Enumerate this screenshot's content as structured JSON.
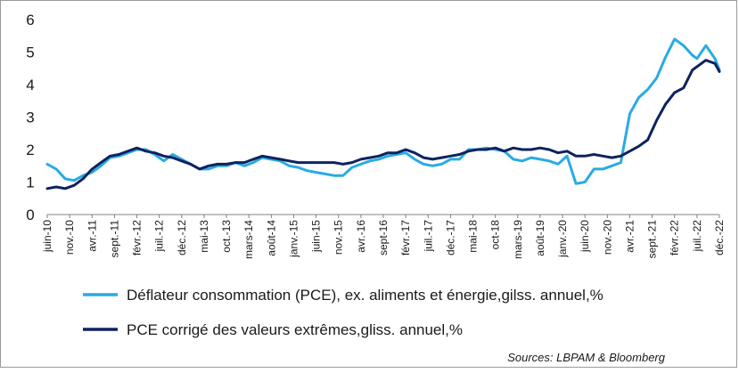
{
  "colors": {
    "pce_headline": "#29abe2",
    "pce_trimmed": "#0d2360",
    "axis": "#808080",
    "text": "#1a1a1a"
  },
  "source_text": "Sources: LBPAM & Bloomberg",
  "chart_data": {
    "type": "line",
    "title": "",
    "xlabel": "",
    "ylabel": "",
    "ylim": [
      0,
      6
    ],
    "yticks": [
      0,
      1,
      2,
      3,
      4,
      5,
      6
    ],
    "grid": false,
    "legend_position": "bottom-left",
    "x_range": [
      "2010-06",
      "2022-12"
    ],
    "x_tick_labels": [
      "juin-10",
      "nov.-10",
      "avr.-11",
      "sept.-11",
      "févr.-12",
      "juil.-12",
      "déc.-12",
      "mai-13",
      "oct.-13",
      "mars-14",
      "août-14",
      "janv.-15",
      "juin-15",
      "nov.-15",
      "avr.-16",
      "sept-16",
      "févr.-17",
      "juil.-17",
      "déc.-17",
      "mai-18",
      "oct-18",
      "mars-19",
      "août-19",
      "janv.-20",
      "juin-20",
      "nov.-20",
      "avr.-21",
      "sept.-21",
      "févr.-22",
      "juil.-22",
      "déc.-22"
    ],
    "series": [
      {
        "name": "Déflateur consommation (PCE), ex. aliments et énergie,gilss. annuel,%",
        "color": "#29abe2",
        "points": [
          [
            "2010-06",
            1.55
          ],
          [
            "2010-08",
            1.4
          ],
          [
            "2010-10",
            1.1
          ],
          [
            "2010-12",
            1.05
          ],
          [
            "2011-02",
            1.2
          ],
          [
            "2011-04",
            1.3
          ],
          [
            "2011-06",
            1.5
          ],
          [
            "2011-08",
            1.75
          ],
          [
            "2011-10",
            1.8
          ],
          [
            "2011-12",
            1.9
          ],
          [
            "2012-02",
            2.0
          ],
          [
            "2012-04",
            2.0
          ],
          [
            "2012-06",
            1.85
          ],
          [
            "2012-08",
            1.65
          ],
          [
            "2012-10",
            1.85
          ],
          [
            "2012-12",
            1.7
          ],
          [
            "2013-02",
            1.55
          ],
          [
            "2013-04",
            1.4
          ],
          [
            "2013-06",
            1.4
          ],
          [
            "2013-08",
            1.5
          ],
          [
            "2013-10",
            1.5
          ],
          [
            "2013-12",
            1.6
          ],
          [
            "2014-02",
            1.5
          ],
          [
            "2014-04",
            1.6
          ],
          [
            "2014-06",
            1.75
          ],
          [
            "2014-08",
            1.7
          ],
          [
            "2014-10",
            1.65
          ],
          [
            "2014-12",
            1.5
          ],
          [
            "2015-02",
            1.45
          ],
          [
            "2015-04",
            1.35
          ],
          [
            "2015-06",
            1.3
          ],
          [
            "2015-08",
            1.25
          ],
          [
            "2015-10",
            1.2
          ],
          [
            "2015-12",
            1.2
          ],
          [
            "2016-02",
            1.45
          ],
          [
            "2016-04",
            1.55
          ],
          [
            "2016-06",
            1.65
          ],
          [
            "2016-08",
            1.7
          ],
          [
            "2016-10",
            1.8
          ],
          [
            "2016-12",
            1.85
          ],
          [
            "2017-02",
            1.9
          ],
          [
            "2017-04",
            1.7
          ],
          [
            "2017-06",
            1.55
          ],
          [
            "2017-08",
            1.5
          ],
          [
            "2017-10",
            1.55
          ],
          [
            "2017-12",
            1.7
          ],
          [
            "2018-02",
            1.7
          ],
          [
            "2018-04",
            2.0
          ],
          [
            "2018-06",
            2.0
          ],
          [
            "2018-08",
            2.05
          ],
          [
            "2018-10",
            2.0
          ],
          [
            "2018-12",
            1.95
          ],
          [
            "2019-02",
            1.7
          ],
          [
            "2019-04",
            1.65
          ],
          [
            "2019-06",
            1.75
          ],
          [
            "2019-08",
            1.7
          ],
          [
            "2019-10",
            1.65
          ],
          [
            "2019-12",
            1.55
          ],
          [
            "2020-02",
            1.8
          ],
          [
            "2020-04",
            0.95
          ],
          [
            "2020-06",
            1.0
          ],
          [
            "2020-08",
            1.4
          ],
          [
            "2020-10",
            1.4
          ],
          [
            "2020-12",
            1.5
          ],
          [
            "2021-02",
            1.6
          ],
          [
            "2021-04",
            3.1
          ],
          [
            "2021-06",
            3.6
          ],
          [
            "2021-08",
            3.85
          ],
          [
            "2021-10",
            4.2
          ],
          [
            "2021-12",
            4.85
          ],
          [
            "2022-02",
            5.4
          ],
          [
            "2022-04",
            5.2
          ],
          [
            "2022-06",
            4.9
          ],
          [
            "2022-07",
            4.8
          ],
          [
            "2022-09",
            5.2
          ],
          [
            "2022-11",
            4.8
          ],
          [
            "2022-12",
            4.45
          ]
        ]
      },
      {
        "name": "PCE corrigé des valeurs extrêmes,gliss. annuel,%",
        "color": "#0d2360",
        "points": [
          [
            "2010-06",
            0.8
          ],
          [
            "2010-08",
            0.85
          ],
          [
            "2010-10",
            0.8
          ],
          [
            "2010-12",
            0.9
          ],
          [
            "2011-02",
            1.1
          ],
          [
            "2011-04",
            1.4
          ],
          [
            "2011-06",
            1.6
          ],
          [
            "2011-08",
            1.8
          ],
          [
            "2011-10",
            1.85
          ],
          [
            "2011-12",
            1.95
          ],
          [
            "2012-02",
            2.05
          ],
          [
            "2012-04",
            1.95
          ],
          [
            "2012-06",
            1.9
          ],
          [
            "2012-08",
            1.8
          ],
          [
            "2012-10",
            1.75
          ],
          [
            "2012-12",
            1.65
          ],
          [
            "2013-02",
            1.55
          ],
          [
            "2013-04",
            1.4
          ],
          [
            "2013-06",
            1.5
          ],
          [
            "2013-08",
            1.55
          ],
          [
            "2013-10",
            1.55
          ],
          [
            "2013-12",
            1.6
          ],
          [
            "2014-02",
            1.6
          ],
          [
            "2014-04",
            1.7
          ],
          [
            "2014-06",
            1.8
          ],
          [
            "2014-08",
            1.75
          ],
          [
            "2014-10",
            1.7
          ],
          [
            "2014-12",
            1.65
          ],
          [
            "2015-02",
            1.6
          ],
          [
            "2015-04",
            1.6
          ],
          [
            "2015-06",
            1.6
          ],
          [
            "2015-08",
            1.6
          ],
          [
            "2015-10",
            1.6
          ],
          [
            "2015-12",
            1.55
          ],
          [
            "2016-02",
            1.6
          ],
          [
            "2016-04",
            1.7
          ],
          [
            "2016-06",
            1.75
          ],
          [
            "2016-08",
            1.8
          ],
          [
            "2016-10",
            1.9
          ],
          [
            "2016-12",
            1.9
          ],
          [
            "2017-02",
            2.0
          ],
          [
            "2017-04",
            1.9
          ],
          [
            "2017-06",
            1.75
          ],
          [
            "2017-08",
            1.7
          ],
          [
            "2017-10",
            1.75
          ],
          [
            "2017-12",
            1.8
          ],
          [
            "2018-02",
            1.85
          ],
          [
            "2018-04",
            1.95
          ],
          [
            "2018-06",
            2.0
          ],
          [
            "2018-08",
            2.0
          ],
          [
            "2018-10",
            2.05
          ],
          [
            "2018-12",
            1.95
          ],
          [
            "2019-02",
            2.05
          ],
          [
            "2019-04",
            2.0
          ],
          [
            "2019-06",
            2.0
          ],
          [
            "2019-08",
            2.05
          ],
          [
            "2019-10",
            2.0
          ],
          [
            "2019-12",
            1.9
          ],
          [
            "2020-02",
            1.95
          ],
          [
            "2020-04",
            1.8
          ],
          [
            "2020-06",
            1.8
          ],
          [
            "2020-08",
            1.85
          ],
          [
            "2020-10",
            1.8
          ],
          [
            "2020-12",
            1.75
          ],
          [
            "2021-02",
            1.8
          ],
          [
            "2021-04",
            1.95
          ],
          [
            "2021-06",
            2.1
          ],
          [
            "2021-08",
            2.3
          ],
          [
            "2021-10",
            2.9
          ],
          [
            "2021-12",
            3.4
          ],
          [
            "2022-02",
            3.75
          ],
          [
            "2022-04",
            3.9
          ],
          [
            "2022-06",
            4.45
          ],
          [
            "2022-07",
            4.55
          ],
          [
            "2022-09",
            4.75
          ],
          [
            "2022-11",
            4.65
          ],
          [
            "2022-12",
            4.4
          ]
        ]
      }
    ]
  }
}
